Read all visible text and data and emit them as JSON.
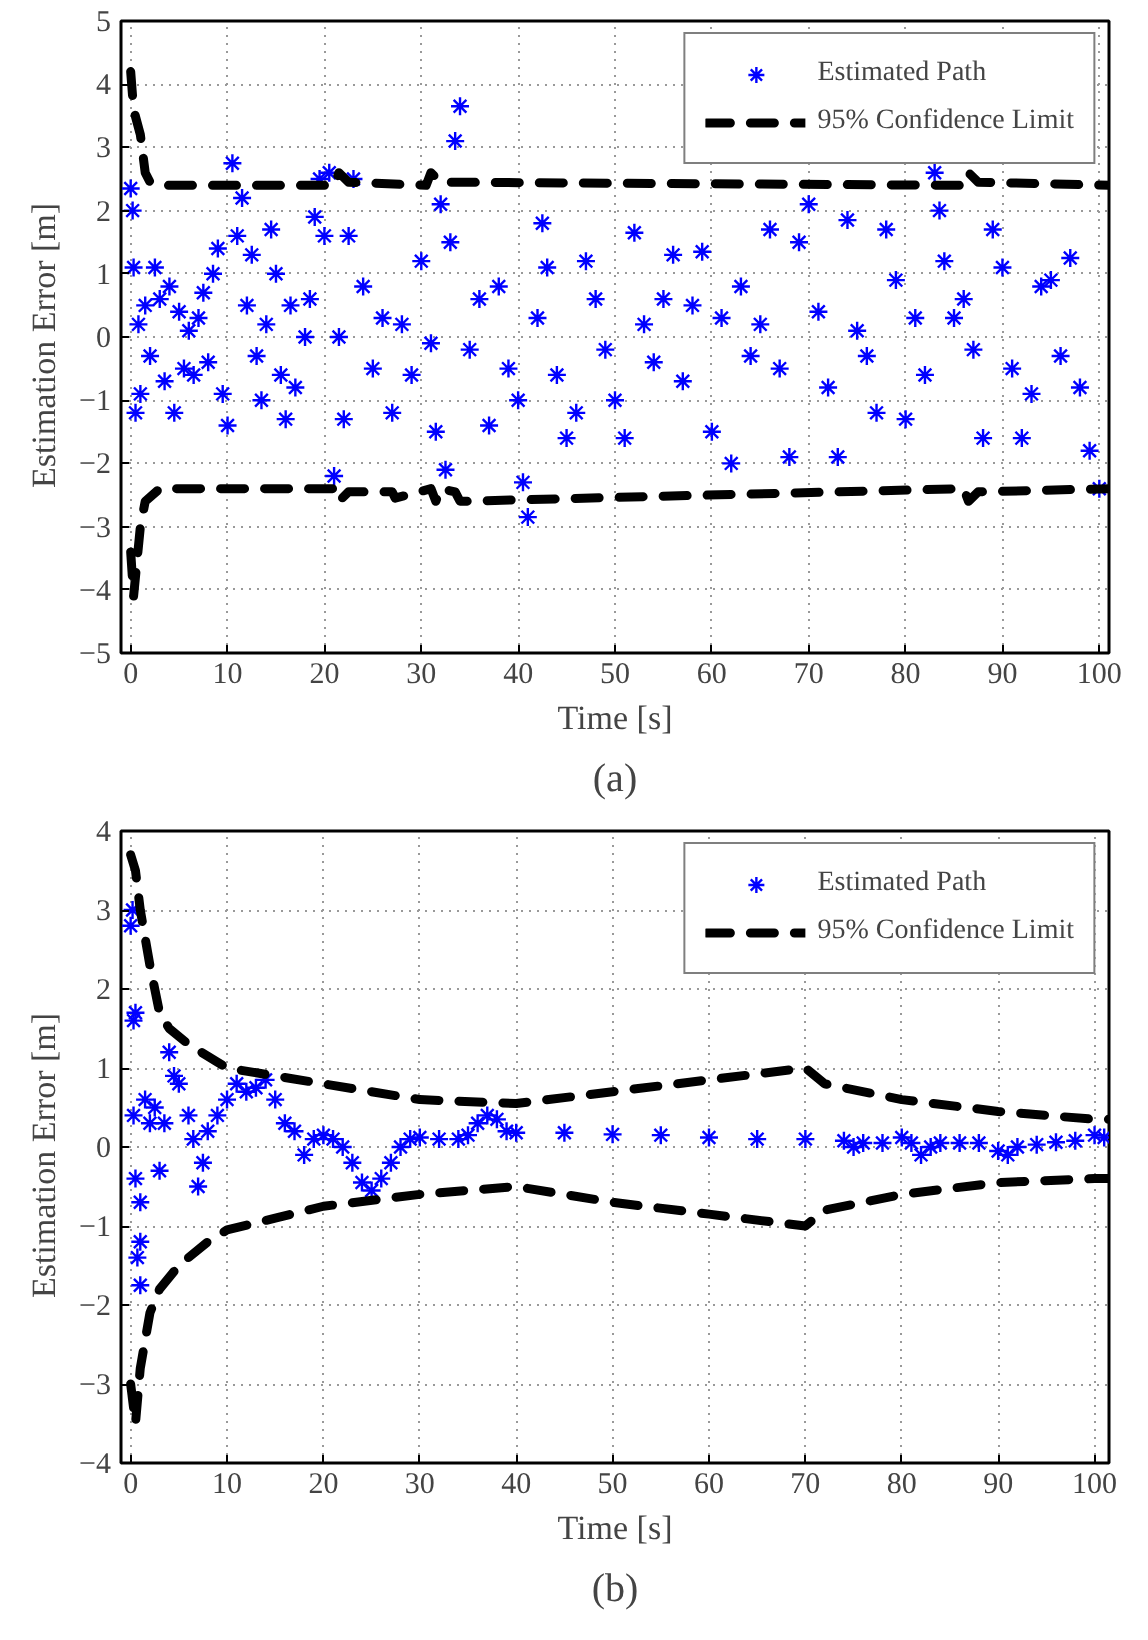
{
  "chart_data": [
    {
      "type": "scatter",
      "xlabel": "Time [s]",
      "ylabel": "Estimation  Error  [m]",
      "annotations": [
        "(a)"
      ],
      "xlim": [
        -1,
        101
      ],
      "ylim": [
        -5,
        5
      ],
      "xticks": [
        0,
        10,
        20,
        30,
        40,
        50,
        60,
        70,
        80,
        90,
        100
      ],
      "yticks": [
        -5,
        -4,
        -3,
        -2,
        -1,
        0,
        1,
        2,
        3,
        4,
        5
      ],
      "grid": true,
      "legend": "top right",
      "marker": "cross",
      "series": [
        {
          "name": "Estimated Path",
          "color": "#0000ff",
          "x": [
            0,
            0.2,
            0.3,
            0.5,
            0.8,
            1,
            1.5,
            2,
            2.5,
            3,
            3.5,
            4,
            4.5,
            5,
            5.5,
            6,
            6.5,
            7,
            7.5,
            8,
            8.5,
            9,
            9.5,
            10,
            10.5,
            11,
            11.5,
            12,
            12.5,
            13,
            13.5,
            14,
            14.5,
            15,
            15.5,
            16,
            16.5,
            17,
            18,
            18.5,
            19,
            19.5,
            20,
            20.5,
            21,
            21.5,
            22,
            22.5,
            23,
            24,
            25,
            26,
            27,
            28,
            29,
            30,
            31,
            31.5,
            32,
            32.5,
            33,
            33.5,
            34,
            35,
            36,
            37,
            38,
            39,
            40,
            40.5,
            41,
            42,
            42.5,
            43,
            44,
            45,
            46,
            47,
            48,
            49,
            50,
            51,
            52,
            53,
            54,
            55,
            56,
            57,
            58,
            59,
            60,
            61,
            62,
            63,
            64,
            65,
            66,
            67,
            68,
            69,
            70,
            71,
            72,
            73,
            74,
            75,
            76,
            77,
            78,
            79,
            80,
            81,
            82,
            83,
            83.5,
            84,
            85,
            86,
            87,
            88,
            89,
            90,
            91,
            92,
            93,
            94,
            95,
            96,
            97,
            98,
            99,
            100
          ],
          "values": [
            2.35,
            2.0,
            1.1,
            -1.2,
            0.2,
            -0.9,
            0.5,
            -0.3,
            1.1,
            0.6,
            -0.7,
            0.8,
            -1.2,
            0.4,
            -0.5,
            0.1,
            -0.6,
            0.3,
            0.7,
            -0.4,
            1.0,
            1.4,
            -0.9,
            -1.4,
            2.75,
            1.6,
            2.2,
            0.5,
            1.3,
            -0.3,
            -1.0,
            0.2,
            1.7,
            1.0,
            -0.6,
            -1.3,
            0.5,
            -0.8,
            0.0,
            0.6,
            1.9,
            2.5,
            1.6,
            2.6,
            -2.2,
            0.0,
            -1.3,
            1.6,
            2.5,
            0.8,
            -0.5,
            0.3,
            -1.2,
            0.2,
            -0.6,
            1.2,
            -0.1,
            -1.5,
            2.1,
            -2.1,
            1.5,
            3.1,
            3.65,
            -0.2,
            0.6,
            -1.4,
            0.8,
            -0.5,
            -1.0,
            -2.3,
            -2.85,
            0.3,
            1.8,
            1.1,
            -0.6,
            -1.6,
            -1.2,
            1.2,
            0.6,
            -0.2,
            -1.0,
            -1.6,
            1.65,
            0.2,
            -0.4,
            0.6,
            1.3,
            -0.7,
            0.5,
            1.35,
            -1.5,
            0.3,
            -2.0,
            0.8,
            -0.3,
            0.2,
            1.7,
            -0.5,
            -1.9,
            1.5,
            2.1,
            0.4,
            -0.8,
            -1.9,
            1.85,
            0.1,
            -0.3,
            -1.2,
            1.7,
            0.9,
            -1.3,
            0.3,
            -0.6,
            2.6,
            2.0,
            1.2,
            0.3,
            0.6,
            -0.2,
            -1.6,
            1.7,
            1.1,
            -0.5,
            -1.6,
            -0.9,
            0.8,
            0.9,
            -0.3,
            1.25,
            -0.8,
            -1.8,
            -2.4
          ]
        },
        {
          "type": "line",
          "name": "95% Confidence Limit",
          "color": "#000000",
          "line_style": "dashed",
          "marker": "none",
          "x": [
            0,
            0.3,
            1,
            1.5,
            2,
            3,
            21,
            21.5,
            22.5,
            30.5,
            31,
            32,
            86,
            86.5,
            87.5,
            101
          ],
          "values": [
            4.2,
            3.6,
            3.2,
            2.6,
            2.45,
            2.4,
            2.4,
            2.6,
            2.45,
            2.4,
            2.6,
            2.45,
            2.4,
            2.6,
            2.45,
            2.4
          ]
        },
        {
          "type": "line",
          "color": "#000000",
          "line_style": "dashed",
          "marker": "none",
          "x": [
            0,
            0.3,
            1,
            1.5,
            3,
            21,
            21.5,
            22.5,
            27,
            27.3,
            31,
            31.5,
            32,
            33.5,
            34,
            86,
            86.5,
            87.5,
            101
          ],
          "values": [
            -3.4,
            -4.1,
            -3.0,
            -2.6,
            -2.4,
            -2.4,
            -2.6,
            -2.45,
            -2.45,
            -2.55,
            -2.4,
            -2.6,
            -2.4,
            -2.45,
            -2.6,
            -2.4,
            -2.6,
            -2.45,
            -2.4
          ]
        }
      ]
    },
    {
      "type": "scatter",
      "xlabel": "Time [s]",
      "ylabel": "Estimation  Error  [m]",
      "annotations": [
        "(b)"
      ],
      "xlim": [
        -1,
        101.5
      ],
      "ylim": [
        -4,
        4
      ],
      "xticks": [
        0,
        10,
        20,
        30,
        40,
        50,
        60,
        70,
        80,
        90,
        100
      ],
      "yticks": [
        -4,
        -3,
        -2,
        -1,
        0,
        1,
        2,
        3,
        4
      ],
      "grid": true,
      "legend": "top right",
      "marker": "cross",
      "series": [
        {
          "name": "Estimated Path",
          "color": "#0000ff",
          "x": [
            0,
            0.2,
            0.3,
            0.5,
            0.3,
            0.5,
            0.7,
            1,
            1,
            1,
            1.5,
            2,
            2.5,
            3,
            3.5,
            4,
            4.5,
            5,
            6,
            6.5,
            7,
            7.5,
            8,
            9,
            10,
            11,
            12,
            13,
            14,
            15,
            16,
            17,
            18,
            19,
            20,
            21,
            22,
            23,
            24,
            25,
            26,
            27,
            28,
            29,
            30,
            32,
            34,
            35,
            36,
            37,
            38,
            39,
            40,
            45,
            50,
            55,
            60,
            65,
            70,
            74,
            75,
            76,
            78,
            80,
            81,
            82,
            83,
            84,
            86,
            88,
            90,
            91,
            92,
            94,
            96,
            98,
            100,
            101
          ],
          "values": [
            2.8,
            3.0,
            1.6,
            1.7,
            0.4,
            -0.4,
            -1.4,
            -1.2,
            -1.75,
            -0.7,
            0.6,
            0.3,
            0.5,
            -0.3,
            0.3,
            1.2,
            0.9,
            0.8,
            0.4,
            0.1,
            -0.5,
            -0.2,
            0.2,
            0.4,
            0.6,
            0.8,
            0.7,
            0.75,
            0.85,
            0.6,
            0.3,
            0.2,
            -0.1,
            0.1,
            0.15,
            0.1,
            0.0,
            -0.2,
            -0.45,
            -0.55,
            -0.4,
            -0.2,
            0.0,
            0.1,
            0.12,
            0.1,
            0.1,
            0.15,
            0.3,
            0.4,
            0.35,
            0.2,
            0.18,
            0.18,
            0.16,
            0.15,
            0.12,
            0.1,
            0.1,
            0.08,
            0.0,
            0.05,
            0.05,
            0.12,
            0.05,
            -0.1,
            0.0,
            0.05,
            0.05,
            0.05,
            -0.05,
            -0.1,
            0.0,
            0.03,
            0.06,
            0.08,
            0.15,
            0.12
          ]
        },
        {
          "type": "line",
          "name": "95% Confidence Limit",
          "color": "#000000",
          "line_style": "dashed",
          "marker": "none",
          "x": [
            0,
            0.5,
            1,
            2,
            3,
            4,
            6,
            10,
            15,
            20,
            25,
            30,
            40,
            50,
            60,
            70,
            72,
            80,
            90,
            100,
            101.5
          ],
          "values": [
            3.7,
            3.5,
            3.0,
            2.3,
            1.7,
            1.5,
            1.3,
            1.0,
            0.9,
            0.8,
            0.7,
            0.6,
            0.55,
            0.7,
            0.85,
            1.0,
            0.8,
            0.6,
            0.45,
            0.35,
            0.35
          ]
        },
        {
          "type": "line",
          "color": "#000000",
          "line_style": "dashed",
          "marker": "none",
          "x": [
            0,
            0.5,
            1,
            2,
            3,
            5,
            8,
            10,
            15,
            20,
            30,
            40,
            50,
            60,
            70,
            72,
            80,
            90,
            100,
            101.5
          ],
          "values": [
            -3.0,
            -3.5,
            -2.8,
            -2.1,
            -1.8,
            -1.5,
            -1.2,
            -1.05,
            -0.9,
            -0.75,
            -0.6,
            -0.5,
            -0.7,
            -0.85,
            -1.0,
            -0.8,
            -0.6,
            -0.45,
            -0.4,
            -0.4
          ]
        }
      ]
    }
  ]
}
